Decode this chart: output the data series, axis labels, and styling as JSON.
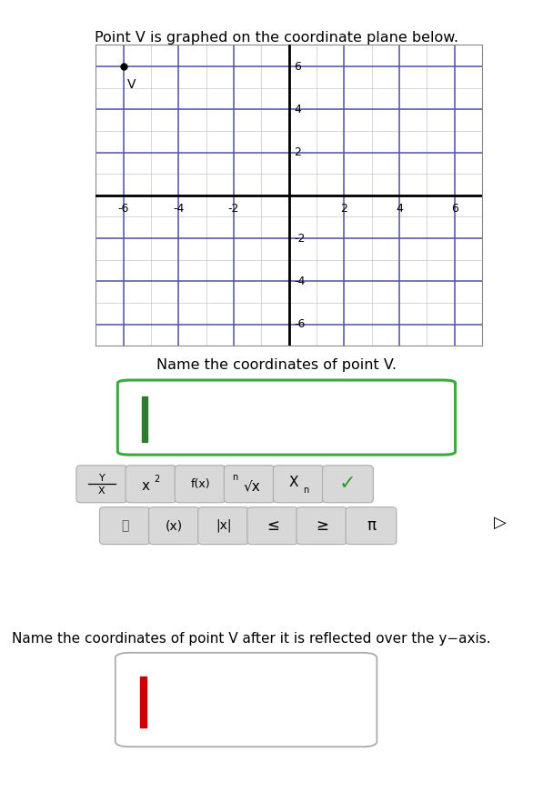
{
  "title": "Point V is graphed on the coordinate plane below.",
  "point_V": [
    -6,
    6
  ],
  "point_label": "V",
  "x_ticks": [
    -6,
    -4,
    -2,
    2,
    4,
    6
  ],
  "y_ticks": [
    -6,
    -4,
    -2,
    2,
    4,
    6
  ],
  "axis_color": "#000000",
  "grid_color_minor": "#c8c8c8",
  "grid_color_major": "#5555aa",
  "background_color": "#ffffff",
  "page_bg": "#e8e8e8",
  "point_color": "#000000",
  "question1": "Name the coordinates of point V.",
  "question2": "Name the coordinates of point V after it is reflected over the y−axis.",
  "box1_border_color": "#3aaa3a",
  "box2_border_color": "#aaaaaa",
  "cursor1_color": "#2e7d2e",
  "cursor2_color": "#cc0000",
  "btn_face": "#d8d8d8",
  "btn_edge": "#aaaaaa",
  "check_color": "#2a9a2a",
  "sep_color": "#bbbbbb"
}
